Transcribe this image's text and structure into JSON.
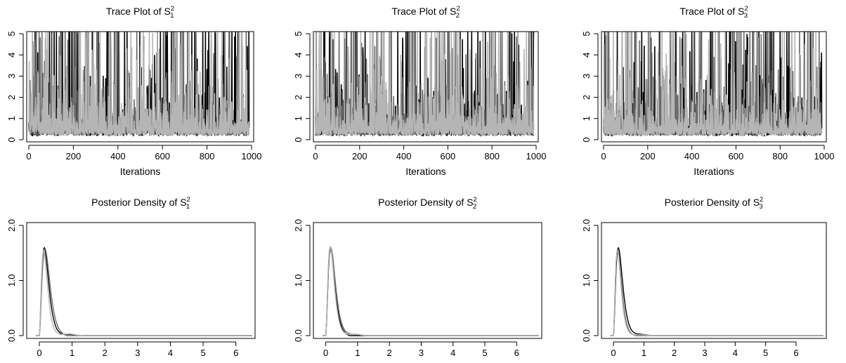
{
  "panel_colors": [
    "#000000",
    "#6b6b6b",
    "#b5b5b5"
  ],
  "chart_data": [
    {
      "type": "line",
      "title": {
        "prefix": "Trace Plot of S",
        "sup": "2",
        "sub": "1"
      },
      "xlabel": "Iterations",
      "ylabel": "",
      "xlim": [
        0,
        1000
      ],
      "ylim": [
        0,
        5
      ],
      "xticks": [
        "0",
        "200",
        "400",
        "600",
        "800",
        "1000"
      ],
      "yticks": [
        "0",
        "1",
        "2",
        "3",
        "4",
        "5"
      ],
      "grid": false,
      "series": [
        {
          "color": "#000000",
          "n": 990,
          "seed": 11,
          "median": 0.35,
          "spikes": [
            [
              40,
              4.1
            ],
            [
              180,
              5.2
            ],
            [
              285,
              5.2
            ],
            [
              540,
              3.5
            ],
            [
              640,
              5.2
            ],
            [
              808,
              5.2
            ],
            [
              836,
              5.2
            ],
            [
              912,
              5.2
            ]
          ]
        },
        {
          "color": "#6b6b6b",
          "n": 990,
          "seed": 23,
          "median": 0.35,
          "spikes": [
            [
              70,
              3.7
            ],
            [
              500,
              4.4
            ],
            [
              900,
              3.8
            ]
          ]
        },
        {
          "color": "#b5b5b5",
          "n": 990,
          "seed": 37,
          "median": 0.35,
          "spikes": [
            [
              320,
              5.2
            ],
            [
              645,
              5.2
            ],
            [
              960,
              4.4
            ]
          ]
        }
      ]
    },
    {
      "type": "line",
      "title": {
        "prefix": "Trace Plot of S",
        "sup": "2",
        "sub": "2"
      },
      "xlabel": "Iterations",
      "ylabel": "",
      "xlim": [
        0,
        1000
      ],
      "ylim": [
        0,
        5
      ],
      "xticks": [
        "0",
        "200",
        "400",
        "600",
        "800",
        "1000"
      ],
      "yticks": [
        "0",
        "1",
        "2",
        "3",
        "4",
        "5"
      ],
      "grid": false,
      "series": [
        {
          "color": "#000000",
          "n": 990,
          "seed": 41,
          "median": 0.35,
          "spikes": [
            [
              395,
              4.8
            ],
            [
              410,
              5.2
            ],
            [
              525,
              5.2
            ],
            [
              690,
              5.2
            ],
            [
              770,
              5.2
            ],
            [
              890,
              5.0
            ]
          ]
        },
        {
          "color": "#6b6b6b",
          "n": 990,
          "seed": 53,
          "median": 0.35,
          "spikes": [
            [
              40,
              3.9
            ],
            [
              260,
              3.3
            ],
            [
              620,
              4.3
            ]
          ]
        },
        {
          "color": "#b5b5b5",
          "n": 990,
          "seed": 67,
          "median": 0.35,
          "spikes": [
            [
              205,
              5.2
            ],
            [
              780,
              4.6
            ],
            [
              975,
              4.1
            ]
          ]
        }
      ]
    },
    {
      "type": "line",
      "title": {
        "prefix": "Trace Plot of S",
        "sup": "2",
        "sub": "3"
      },
      "xlabel": "Iterations",
      "ylabel": "",
      "xlim": [
        0,
        1000
      ],
      "ylim": [
        0,
        5
      ],
      "xticks": [
        "0",
        "200",
        "400",
        "600",
        "800",
        "1000"
      ],
      "yticks": [
        "0",
        "1",
        "2",
        "3",
        "4",
        "5"
      ],
      "grid": false,
      "series": [
        {
          "color": "#000000",
          "n": 990,
          "seed": 71,
          "median": 0.35,
          "spikes": [
            [
              215,
              4.8
            ],
            [
              770,
              5.2
            ],
            [
              840,
              5.2
            ],
            [
              910,
              5.2
            ],
            [
              930,
              5.2
            ]
          ]
        },
        {
          "color": "#6b6b6b",
          "n": 990,
          "seed": 83,
          "median": 0.35,
          "spikes": [
            [
              60,
              3.7
            ],
            [
              250,
              3.0
            ],
            [
              690,
              3.5
            ]
          ]
        },
        {
          "color": "#b5b5b5",
          "n": 990,
          "seed": 97,
          "median": 0.35,
          "spikes": [
            [
              100,
              5.2
            ],
            [
              265,
              5.2
            ],
            [
              590,
              5.2
            ]
          ]
        }
      ]
    },
    {
      "type": "line",
      "title": {
        "prefix": "Posterior Density of S",
        "sup": "2",
        "sub": "1"
      },
      "xlabel": "",
      "ylabel": "",
      "xlim": [
        -0.3,
        6.5
      ],
      "ylim": [
        0,
        2.0
      ],
      "xticks": [
        "0",
        "1",
        "2",
        "3",
        "4",
        "5",
        "6"
      ],
      "yticks": [
        "0.0",
        "1.0",
        "2.0"
      ],
      "grid": false,
      "series": [
        {
          "color": "#000000",
          "mode": 0.15,
          "peak": 1.6,
          "xmin": -0.1,
          "xmax": 6.5,
          "bump": 0.02
        },
        {
          "color": "#6b6b6b",
          "mode": 0.17,
          "peak": 1.58,
          "xmin": -0.1,
          "xmax": 6.5,
          "bump": -0.015
        },
        {
          "color": "#b5b5b5",
          "mode": 0.13,
          "peak": 1.55,
          "xmin": -0.1,
          "xmax": 6.5,
          "bump": 0.03
        }
      ]
    },
    {
      "type": "line",
      "title": {
        "prefix": "Posterior Density of S",
        "sup": "2",
        "sub": "2"
      },
      "xlabel": "",
      "ylabel": "",
      "xlim": [
        -0.3,
        6.7
      ],
      "ylim": [
        0,
        2.0
      ],
      "xticks": [
        "0",
        "1",
        "2",
        "3",
        "4",
        "5",
        "6"
      ],
      "yticks": [
        "0.0",
        "1.0",
        "2.0"
      ],
      "grid": false,
      "series": [
        {
          "color": "#000000",
          "mode": 0.15,
          "peak": 1.57,
          "xmin": -0.1,
          "xmax": 6.7,
          "bump": -0.02
        },
        {
          "color": "#6b6b6b",
          "mode": 0.16,
          "peak": 1.6,
          "xmin": -0.1,
          "xmax": 6.7,
          "bump": 0.02
        },
        {
          "color": "#b5b5b5",
          "mode": 0.14,
          "peak": 1.62,
          "xmin": -0.1,
          "xmax": 6.7,
          "bump": 0.025
        }
      ]
    },
    {
      "type": "line",
      "title": {
        "prefix": "Posterior Density of S",
        "sup": "2",
        "sub": "3"
      },
      "xlabel": "",
      "ylabel": "",
      "xlim": [
        -0.3,
        6.9
      ],
      "ylim": [
        0,
        2.0
      ],
      "xticks": [
        "0",
        "1",
        "2",
        "3",
        "4",
        "5",
        "6"
      ],
      "yticks": [
        "0.0",
        "1.0",
        "2.0"
      ],
      "grid": false,
      "series": [
        {
          "color": "#000000",
          "mode": 0.16,
          "peak": 1.6,
          "xmin": -0.1,
          "xmax": 6.9,
          "bump": 0.02
        },
        {
          "color": "#6b6b6b",
          "mode": 0.14,
          "peak": 1.57,
          "xmin": -0.1,
          "xmax": 6.9,
          "bump": -0.02
        },
        {
          "color": "#b5b5b5",
          "mode": 0.13,
          "peak": 1.55,
          "xmin": -0.1,
          "xmax": 6.9,
          "bump": 0.015
        }
      ]
    }
  ]
}
